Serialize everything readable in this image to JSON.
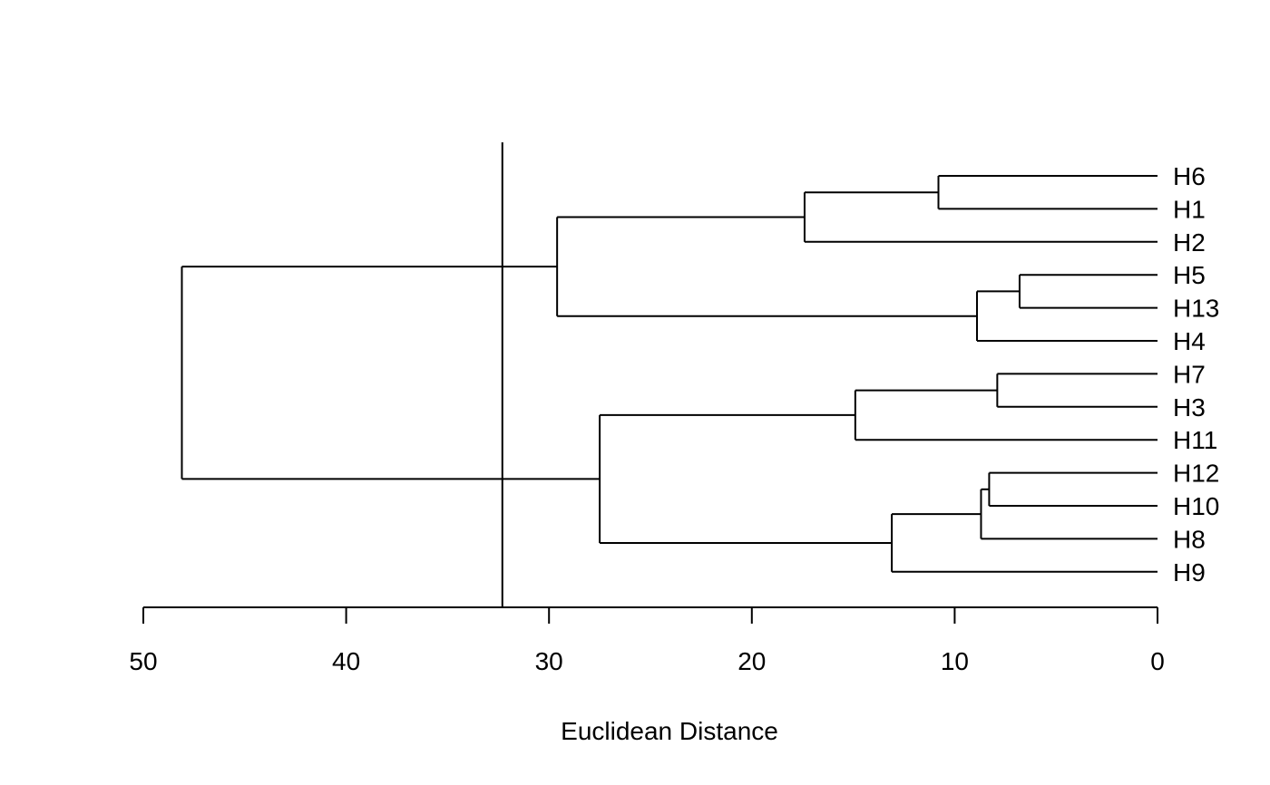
{
  "chart_data": {
    "type": "dendrogram",
    "orientation": "horizontal",
    "xlabel": "Euclidean Distance",
    "xlim": [
      50,
      0
    ],
    "x_ticks": [
      50,
      40,
      30,
      20,
      10,
      0
    ],
    "x_tick_labels": [
      "50",
      "40",
      "30",
      "20",
      "10",
      "0"
    ],
    "cut_line": 32.3,
    "leaves": [
      "H6",
      "H1",
      "H2",
      "H5",
      "H13",
      "H4",
      "H7",
      "H3",
      "H11",
      "H12",
      "H10",
      "H8",
      "H9"
    ],
    "merges": [
      {
        "id": "c1",
        "left": "H6",
        "right": "H1",
        "height": 10.8
      },
      {
        "id": "c2",
        "left": "c1",
        "right": "H2",
        "height": 17.4
      },
      {
        "id": "c3",
        "left": "H5",
        "right": "H13",
        "height": 6.8
      },
      {
        "id": "c4",
        "left": "c3",
        "right": "H4",
        "height": 8.9
      },
      {
        "id": "c5",
        "left": "c2",
        "right": "c4",
        "height": 29.6
      },
      {
        "id": "c6",
        "left": "H7",
        "right": "H3",
        "height": 7.9
      },
      {
        "id": "c7",
        "left": "c6",
        "right": "H11",
        "height": 14.9
      },
      {
        "id": "c8",
        "left": "H12",
        "right": "H10",
        "height": 8.3
      },
      {
        "id": "c9",
        "left": "c8",
        "right": "H8",
        "height": 8.7
      },
      {
        "id": "c10",
        "left": "c9",
        "right": "H9",
        "height": 13.1
      },
      {
        "id": "c11",
        "left": "c7",
        "right": "c10",
        "height": 27.5
      },
      {
        "id": "c12",
        "left": "c5",
        "right": "c11",
        "height": 48.1
      }
    ]
  }
}
